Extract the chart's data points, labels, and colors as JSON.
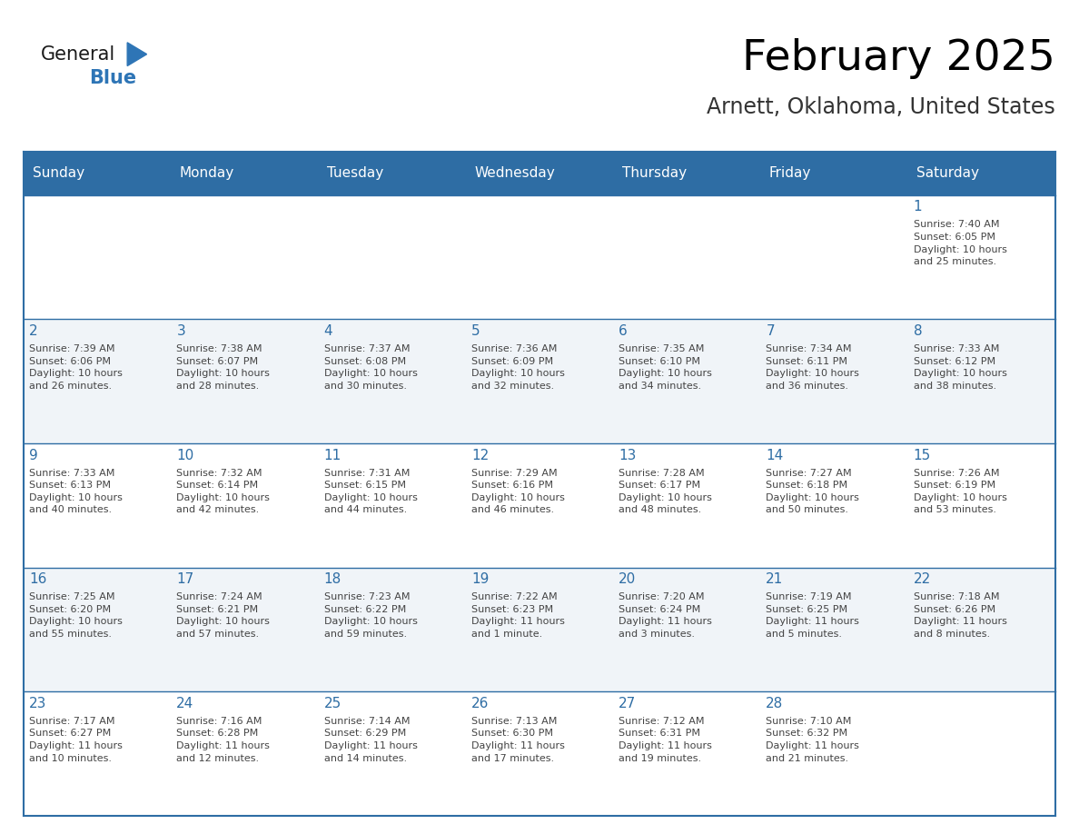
{
  "title": "February 2025",
  "subtitle": "Arnett, Oklahoma, United States",
  "days_of_week": [
    "Sunday",
    "Monday",
    "Tuesday",
    "Wednesday",
    "Thursday",
    "Friday",
    "Saturday"
  ],
  "header_bg": "#2E6DA4",
  "header_text": "#FFFFFF",
  "cell_bg_odd": "#FFFFFF",
  "cell_bg_even": "#F0F4F8",
  "day_number_color": "#2E6DA4",
  "text_color": "#444444",
  "line_color": "#2E6DA4",
  "logo_general_color": "#1a1a1a",
  "logo_blue_color": "#2E75B6",
  "calendar_data": [
    [
      {
        "day": null,
        "sunrise": null,
        "sunset": null,
        "daylight": null
      },
      {
        "day": null,
        "sunrise": null,
        "sunset": null,
        "daylight": null
      },
      {
        "day": null,
        "sunrise": null,
        "sunset": null,
        "daylight": null
      },
      {
        "day": null,
        "sunrise": null,
        "sunset": null,
        "daylight": null
      },
      {
        "day": null,
        "sunrise": null,
        "sunset": null,
        "daylight": null
      },
      {
        "day": null,
        "sunrise": null,
        "sunset": null,
        "daylight": null
      },
      {
        "day": 1,
        "sunrise": "7:40 AM",
        "sunset": "6:05 PM",
        "daylight": "10 hours\nand 25 minutes."
      }
    ],
    [
      {
        "day": 2,
        "sunrise": "7:39 AM",
        "sunset": "6:06 PM",
        "daylight": "10 hours\nand 26 minutes."
      },
      {
        "day": 3,
        "sunrise": "7:38 AM",
        "sunset": "6:07 PM",
        "daylight": "10 hours\nand 28 minutes."
      },
      {
        "day": 4,
        "sunrise": "7:37 AM",
        "sunset": "6:08 PM",
        "daylight": "10 hours\nand 30 minutes."
      },
      {
        "day": 5,
        "sunrise": "7:36 AM",
        "sunset": "6:09 PM",
        "daylight": "10 hours\nand 32 minutes."
      },
      {
        "day": 6,
        "sunrise": "7:35 AM",
        "sunset": "6:10 PM",
        "daylight": "10 hours\nand 34 minutes."
      },
      {
        "day": 7,
        "sunrise": "7:34 AM",
        "sunset": "6:11 PM",
        "daylight": "10 hours\nand 36 minutes."
      },
      {
        "day": 8,
        "sunrise": "7:33 AM",
        "sunset": "6:12 PM",
        "daylight": "10 hours\nand 38 minutes."
      }
    ],
    [
      {
        "day": 9,
        "sunrise": "7:33 AM",
        "sunset": "6:13 PM",
        "daylight": "10 hours\nand 40 minutes."
      },
      {
        "day": 10,
        "sunrise": "7:32 AM",
        "sunset": "6:14 PM",
        "daylight": "10 hours\nand 42 minutes."
      },
      {
        "day": 11,
        "sunrise": "7:31 AM",
        "sunset": "6:15 PM",
        "daylight": "10 hours\nand 44 minutes."
      },
      {
        "day": 12,
        "sunrise": "7:29 AM",
        "sunset": "6:16 PM",
        "daylight": "10 hours\nand 46 minutes."
      },
      {
        "day": 13,
        "sunrise": "7:28 AM",
        "sunset": "6:17 PM",
        "daylight": "10 hours\nand 48 minutes."
      },
      {
        "day": 14,
        "sunrise": "7:27 AM",
        "sunset": "6:18 PM",
        "daylight": "10 hours\nand 50 minutes."
      },
      {
        "day": 15,
        "sunrise": "7:26 AM",
        "sunset": "6:19 PM",
        "daylight": "10 hours\nand 53 minutes."
      }
    ],
    [
      {
        "day": 16,
        "sunrise": "7:25 AM",
        "sunset": "6:20 PM",
        "daylight": "10 hours\nand 55 minutes."
      },
      {
        "day": 17,
        "sunrise": "7:24 AM",
        "sunset": "6:21 PM",
        "daylight": "10 hours\nand 57 minutes."
      },
      {
        "day": 18,
        "sunrise": "7:23 AM",
        "sunset": "6:22 PM",
        "daylight": "10 hours\nand 59 minutes."
      },
      {
        "day": 19,
        "sunrise": "7:22 AM",
        "sunset": "6:23 PM",
        "daylight": "11 hours\nand 1 minute."
      },
      {
        "day": 20,
        "sunrise": "7:20 AM",
        "sunset": "6:24 PM",
        "daylight": "11 hours\nand 3 minutes."
      },
      {
        "day": 21,
        "sunrise": "7:19 AM",
        "sunset": "6:25 PM",
        "daylight": "11 hours\nand 5 minutes."
      },
      {
        "day": 22,
        "sunrise": "7:18 AM",
        "sunset": "6:26 PM",
        "daylight": "11 hours\nand 8 minutes."
      }
    ],
    [
      {
        "day": 23,
        "sunrise": "7:17 AM",
        "sunset": "6:27 PM",
        "daylight": "11 hours\nand 10 minutes."
      },
      {
        "day": 24,
        "sunrise": "7:16 AM",
        "sunset": "6:28 PM",
        "daylight": "11 hours\nand 12 minutes."
      },
      {
        "day": 25,
        "sunrise": "7:14 AM",
        "sunset": "6:29 PM",
        "daylight": "11 hours\nand 14 minutes."
      },
      {
        "day": 26,
        "sunrise": "7:13 AM",
        "sunset": "6:30 PM",
        "daylight": "11 hours\nand 17 minutes."
      },
      {
        "day": 27,
        "sunrise": "7:12 AM",
        "sunset": "6:31 PM",
        "daylight": "11 hours\nand 19 minutes."
      },
      {
        "day": 28,
        "sunrise": "7:10 AM",
        "sunset": "6:32 PM",
        "daylight": "11 hours\nand 21 minutes."
      },
      {
        "day": null,
        "sunrise": null,
        "sunset": null,
        "daylight": null
      }
    ]
  ]
}
